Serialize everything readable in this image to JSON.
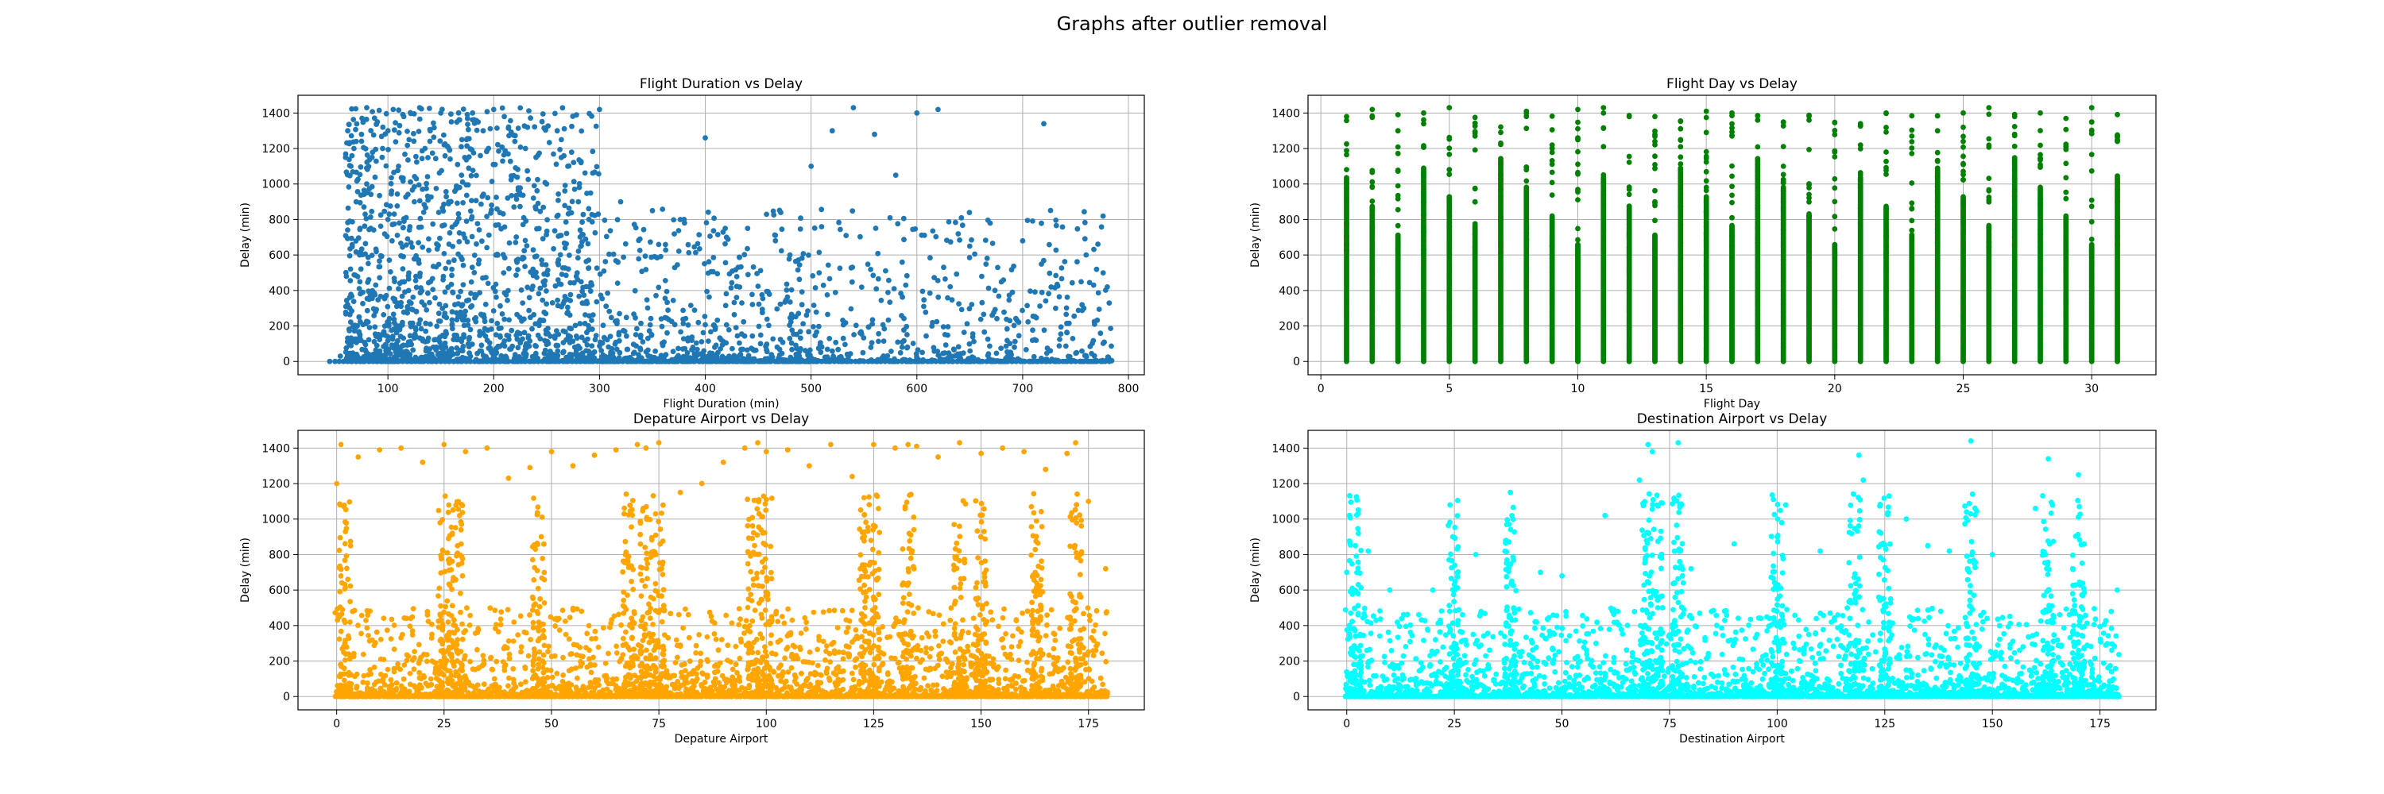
{
  "figure_title": "Graphs after outlier removal",
  "chart_data": [
    {
      "type": "scatter",
      "title": "Flight Duration vs Delay",
      "xlabel": "Flight Duration (min)",
      "ylabel": "Delay (min)",
      "xlim": [
        15,
        815
      ],
      "ylim": [
        -75,
        1500
      ],
      "xticks": [
        100,
        200,
        300,
        400,
        500,
        600,
        700,
        800
      ],
      "yticks": [
        0,
        200,
        400,
        600,
        800,
        1000,
        1200,
        1400
      ],
      "color": "#1f77b4",
      "grid": true,
      "pattern": "duration",
      "x": [
        45,
        55,
        60,
        62,
        65,
        70,
        70,
        75,
        80,
        80,
        85,
        90,
        95,
        100,
        100,
        105,
        110,
        115,
        120,
        125,
        130,
        135,
        140,
        150,
        160,
        170,
        180,
        190,
        200,
        210,
        220,
        230,
        240,
        250,
        260,
        270,
        280,
        290,
        300,
        320,
        350,
        380,
        400,
        420,
        440,
        480,
        500,
        520,
        540,
        560,
        580,
        600,
        620,
        650,
        700,
        720,
        760,
        780
      ],
      "y": [
        0,
        30,
        1150,
        1300,
        1100,
        1240,
        900,
        1280,
        1430,
        1000,
        1150,
        1350,
        1200,
        1300,
        800,
        1420,
        1100,
        1380,
        1250,
        900,
        1430,
        1200,
        1300,
        1400,
        1350,
        1250,
        1400,
        1300,
        1420,
        1380,
        1240,
        1200,
        1150,
        1000,
        1300,
        1100,
        900,
        800,
        1420,
        900,
        850,
        800,
        1260,
        700,
        750,
        600,
        1100,
        1300,
        1430,
        1280,
        1050,
        1400,
        1420,
        650,
        680,
        1340,
        600,
        420
      ]
    },
    {
      "type": "scatter",
      "title": "Flight Day vs Delay",
      "xlabel": "Flight Day",
      "ylabel": "Delay (min)",
      "xlim": [
        -0.5,
        32.5
      ],
      "ylim": [
        -75,
        1500
      ],
      "xticks": [
        0,
        5,
        10,
        15,
        20,
        25,
        30
      ],
      "yticks": [
        0,
        200,
        400,
        600,
        800,
        1000,
        1200,
        1400
      ],
      "color": "#008000",
      "grid": true,
      "pattern": "days",
      "x": [
        1,
        2,
        3,
        4,
        5,
        6,
        7,
        8,
        9,
        10,
        11,
        12,
        13,
        14,
        15,
        16,
        17,
        18,
        19,
        20,
        21,
        22,
        23,
        24,
        25,
        26,
        27,
        28,
        29,
        30,
        31
      ],
      "y": [
        1380,
        1420,
        1300,
        1400,
        1430,
        1270,
        1230,
        1410,
        1220,
        1420,
        1430,
        1380,
        1380,
        1250,
        1410,
        1400,
        1360,
        1100,
        1360,
        1180,
        1340,
        1400,
        1270,
        1300,
        1400,
        1430,
        1280,
        1400,
        1370,
        1430,
        1240
      ]
    },
    {
      "type": "scatter",
      "title": "Depature Airport vs Delay",
      "xlabel": "Depature Airport",
      "ylabel": "Delay (min)",
      "xlim": [
        -9,
        188
      ],
      "ylim": [
        -75,
        1500
      ],
      "xticks": [
        0,
        25,
        50,
        75,
        100,
        125,
        150,
        175
      ],
      "yticks": [
        0,
        200,
        400,
        600,
        800,
        1000,
        1200,
        1400
      ],
      "color": "#ffa500",
      "grid": true,
      "pattern": "airport",
      "hotspots": [
        2,
        25,
        28,
        47,
        68,
        72,
        75,
        97,
        100,
        123,
        125,
        133,
        145,
        150,
        163,
        172
      ],
      "x": [
        0,
        1,
        5,
        10,
        15,
        20,
        25,
        30,
        35,
        40,
        45,
        50,
        55,
        60,
        65,
        70,
        72,
        75,
        80,
        85,
        90,
        95,
        98,
        100,
        105,
        110,
        115,
        120,
        125,
        130,
        133,
        135,
        140,
        145,
        150,
        155,
        160,
        165,
        170,
        172,
        175,
        179
      ],
      "y": [
        1200,
        1420,
        1350,
        1390,
        1400,
        1320,
        1420,
        1380,
        1400,
        1230,
        1290,
        1380,
        1300,
        1360,
        1390,
        1420,
        1400,
        1430,
        1150,
        1200,
        1320,
        1400,
        1430,
        1380,
        1390,
        1300,
        1420,
        1240,
        1420,
        1400,
        1420,
        1410,
        1350,
        1430,
        1370,
        1400,
        1380,
        1280,
        1370,
        1430,
        1100,
        720
      ]
    },
    {
      "type": "scatter",
      "title": "Destination Airport vs Delay",
      "xlabel": "Destination Airport",
      "ylabel": "Delay (min)",
      "xlim": [
        -9,
        188
      ],
      "ylim": [
        -75,
        1500
      ],
      "xticks": [
        0,
        25,
        50,
        75,
        100,
        125,
        150,
        175
      ],
      "yticks": [
        0,
        200,
        400,
        600,
        800,
        1000,
        1200,
        1400
      ],
      "color": "#00ffff",
      "grid": true,
      "pattern": "airport",
      "hotspots": [
        2,
        25,
        38,
        70,
        72,
        77,
        100,
        118,
        125,
        145,
        163,
        170
      ],
      "x": [
        0,
        2,
        5,
        10,
        20,
        24,
        30,
        38,
        45,
        50,
        60,
        68,
        70,
        71,
        77,
        80,
        90,
        100,
        102,
        110,
        119,
        120,
        126,
        130,
        135,
        140,
        145,
        150,
        160,
        163,
        170,
        179
      ],
      "y": [
        700,
        850,
        820,
        600,
        600,
        1080,
        800,
        1150,
        700,
        680,
        1020,
        1220,
        1420,
        1380,
        1430,
        720,
        860,
        900,
        1080,
        820,
        1360,
        1220,
        1130,
        1000,
        850,
        820,
        1440,
        800,
        1060,
        1340,
        1250,
        600
      ]
    }
  ]
}
